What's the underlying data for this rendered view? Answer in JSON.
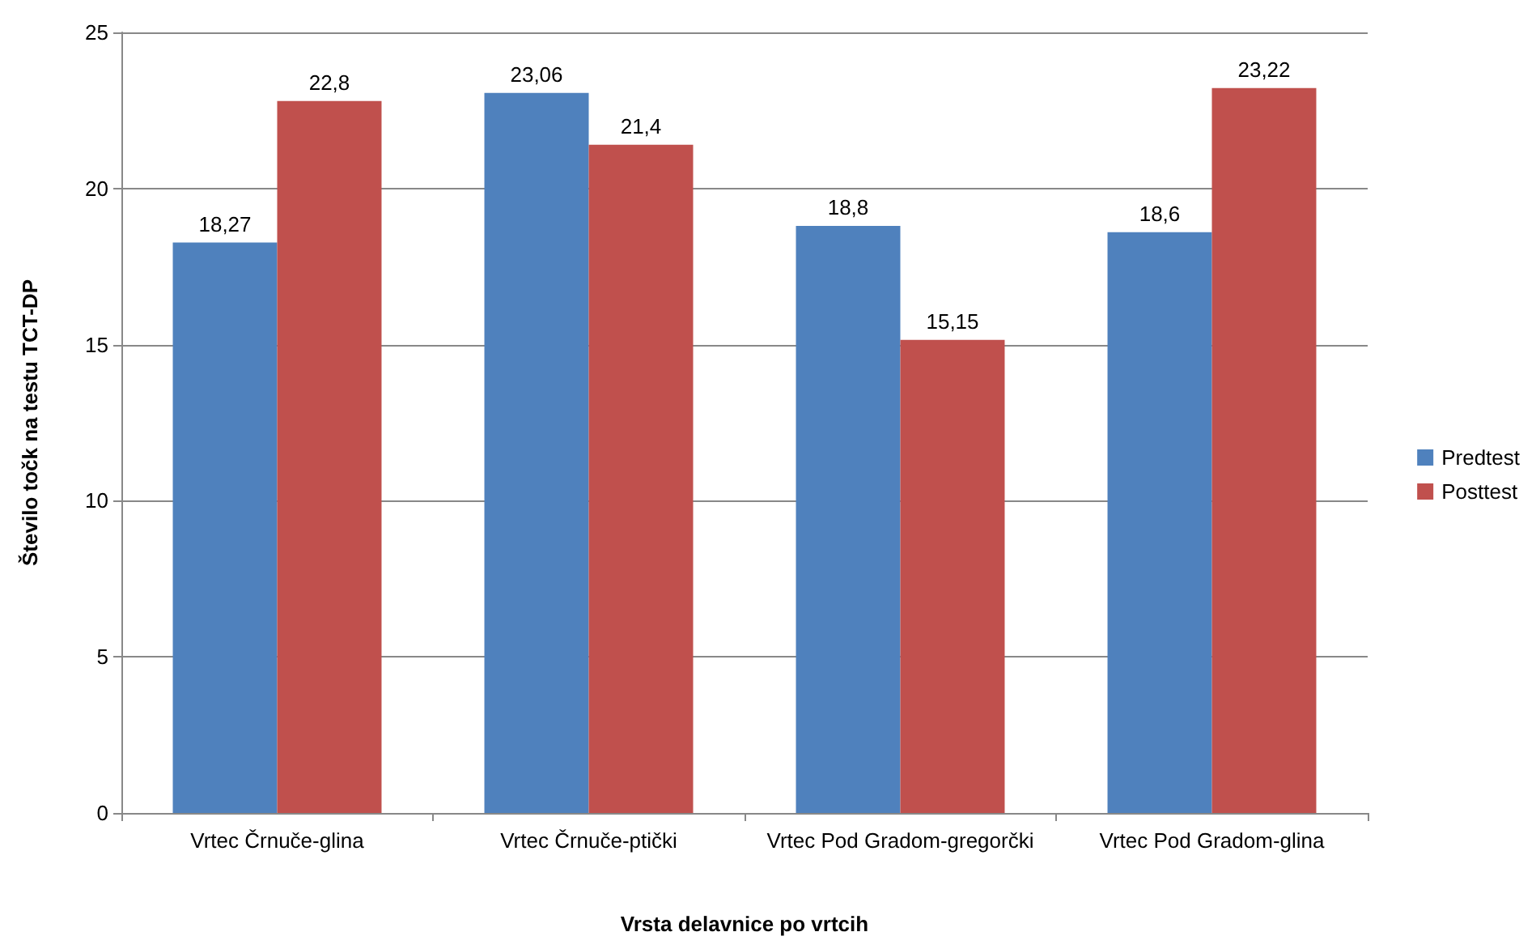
{
  "chart_data": {
    "type": "bar",
    "xlabel": "Vrsta delavnice po vrtcih",
    "ylabel": "Število točk na testu TCT-DP",
    "categories": [
      "Vrtec Črnuče-glina",
      "Vrtec Črnuče-ptički",
      "Vrtec Pod Gradom-gregorčki",
      "Vrtec Pod Gradom-glina"
    ],
    "series": [
      {
        "name": "Predtest",
        "color": "#4f81bd",
        "values": [
          18.27,
          23.06,
          18.8,
          18.6
        ],
        "value_labels": [
          "18,27",
          "23,06",
          "18,8",
          "18,6"
        ]
      },
      {
        "name": "Posttest",
        "color": "#c0504d",
        "values": [
          22.8,
          21.4,
          15.15,
          23.22
        ],
        "value_labels": [
          "22,8",
          "21,4",
          "15,15",
          "23,22"
        ]
      }
    ],
    "ylim": [
      0,
      25
    ],
    "yticks": [
      0,
      5,
      10,
      15,
      20,
      25
    ],
    "grid": "y",
    "legend": "right"
  }
}
